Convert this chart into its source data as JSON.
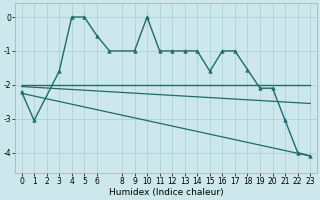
{
  "title": "",
  "xlabel": "Humidex (Indice chaleur)",
  "bg_color": "#cce8ec",
  "line_color": "#1e6b6b",
  "grid_color": "#b0cfd4",
  "xlim": [
    -0.5,
    23.5
  ],
  "ylim": [
    -4.6,
    0.4
  ],
  "yticks": [
    0,
    -1,
    -2,
    -3,
    -4
  ],
  "xticks": [
    0,
    1,
    2,
    3,
    4,
    5,
    6,
    8,
    9,
    10,
    11,
    12,
    13,
    14,
    15,
    16,
    17,
    18,
    19,
    20,
    21,
    22,
    23
  ],
  "series": [
    {
      "x": [
        0,
        1,
        3,
        4,
        5,
        6,
        7,
        9,
        10,
        11,
        12,
        13,
        14,
        15,
        16,
        17,
        18,
        19,
        20,
        21,
        22,
        23
      ],
      "y": [
        -2.2,
        -3.05,
        -1.6,
        0.0,
        0.0,
        -0.55,
        -1.0,
        -1.0,
        0.0,
        -1.0,
        -1.0,
        -1.0,
        -1.0,
        -1.6,
        -1.0,
        -1.0,
        -1.55,
        -2.1,
        -2.1,
        -3.05,
        -4.0,
        -4.1
      ],
      "marker": "^",
      "markersize": 2.5,
      "linewidth": 1.0
    },
    {
      "x": [
        0,
        23
      ],
      "y": [
        -2.0,
        -2.0
      ],
      "marker": null,
      "linewidth": 1.0
    },
    {
      "x": [
        0,
        23
      ],
      "y": [
        -2.05,
        -2.55
      ],
      "marker": null,
      "linewidth": 0.9
    },
    {
      "x": [
        0,
        23
      ],
      "y": [
        -2.25,
        -4.1
      ],
      "marker": null,
      "linewidth": 0.9
    }
  ]
}
